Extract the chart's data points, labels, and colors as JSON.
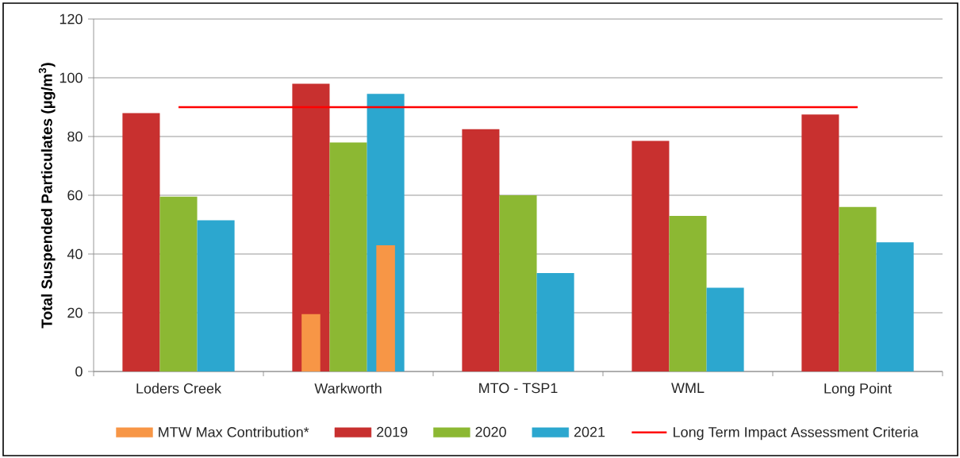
{
  "chart_data": {
    "type": "bar",
    "ylabel": "Total Suspended Particulates (µg/m$^{3}$)",
    "categories": [
      "Loders Creek",
      "Warkworth",
      "MTO - TSP1",
      "WML",
      "Long Point"
    ],
    "series": [
      {
        "name": "MTW Max Contribution*",
        "color": "#f79646",
        "values": [
          null,
          19.5,
          null,
          null,
          null
        ]
      },
      {
        "color": "#f79646",
        "values": [
          null,
          null,
          null,
          null,
          null
        ]
      },
      {
        "color": "#f79646",
        "values": [
          null,
          43,
          null,
          null,
          null
        ]
      },
      {
        "name": "2019",
        "color": "#c8302f",
        "values": [
          88,
          98,
          82.5,
          78.5,
          87.5
        ]
      },
      {
        "name": "2020",
        "color": "#8cb833",
        "values": [
          59.5,
          78,
          60,
          53,
          56
        ]
      },
      {
        "name": "2021",
        "color": "#2ca7cf",
        "values": [
          51.5,
          94.5,
          33.5,
          28.5,
          44
        ]
      },
      {
        "name": "Long Term Impact Assessment Criteria",
        "type": "line",
        "color": "#ff0000",
        "values": [
          90,
          90,
          90,
          90,
          90
        ]
      }
    ],
    "ylim": [
      0,
      120
    ],
    "yticks": [
      0,
      20,
      40,
      60,
      80,
      100,
      120
    ],
    "grid": "y",
    "legend": "bottom"
  }
}
